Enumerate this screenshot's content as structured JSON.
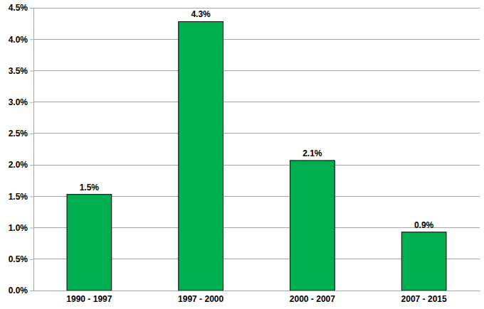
{
  "chart_data": {
    "type": "bar",
    "categories": [
      "1990 - 1997",
      "1997 - 2000",
      "2000 - 2007",
      "2007 - 2015"
    ],
    "values": [
      1.53,
      4.28,
      2.07,
      0.93
    ],
    "value_labels": [
      "1.5%",
      "4.3%",
      "2.1%",
      "0.9%"
    ],
    "color": "#00b050",
    "ylim": [
      0,
      4.5
    ],
    "yticks": [
      {
        "value": 0,
        "label": "0.0%"
      },
      {
        "value": 0.5,
        "label": "0.5%"
      },
      {
        "value": 1,
        "label": "1.0%"
      },
      {
        "value": 1.5,
        "label": "1.5%"
      },
      {
        "value": 2,
        "label": "2.0%"
      },
      {
        "value": 2.5,
        "label": "2.5%"
      },
      {
        "value": 3,
        "label": "3.0%"
      },
      {
        "value": 3.5,
        "label": "3.5%"
      },
      {
        "value": 4,
        "label": "4.0%"
      },
      {
        "value": 4.5,
        "label": "4.5%"
      }
    ],
    "grid": true,
    "data_labels": true
  }
}
